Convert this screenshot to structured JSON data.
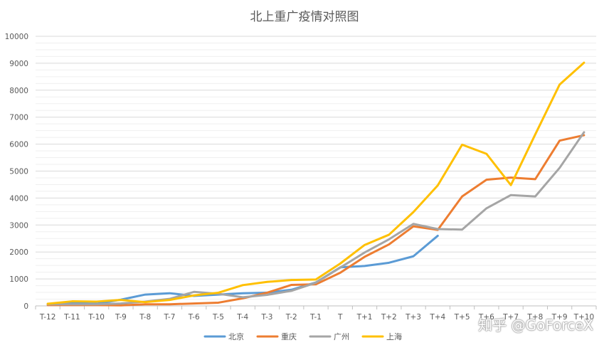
{
  "chart_data": {
    "type": "line",
    "title": "北上重广疫情对照图",
    "xlabel": "",
    "ylabel": "",
    "x": [
      "T-12",
      "T-11",
      "T-10",
      "T-9",
      "T-8",
      "T-7",
      "T-6",
      "T-5",
      "T-4",
      "T-3",
      "T-2",
      "T-1",
      "T",
      "T+1",
      "T+2",
      "T+3",
      "T+4",
      "T+5",
      "T+6",
      "T+7",
      "T+8",
      "T+9",
      "T+10"
    ],
    "ylim": [
      0,
      10000
    ],
    "yticks": [
      0,
      1000,
      2000,
      3000,
      4000,
      5000,
      6000,
      7000,
      8000,
      9000,
      10000
    ],
    "grid": true,
    "legend_position": "bottom",
    "series": [
      {
        "name": "北京",
        "color": "#5b9bd5",
        "values": [
          70,
          110,
          80,
          230,
          420,
          470,
          370,
          420,
          470,
          490,
          600,
          870,
          1430,
          1480,
          1600,
          1840,
          2600,
          null,
          null,
          null,
          null,
          null,
          null
        ]
      },
      {
        "name": "重庆",
        "color": "#ed7d31",
        "values": [
          30,
          30,
          30,
          20,
          60,
          60,
          90,
          120,
          280,
          490,
          780,
          800,
          1230,
          1820,
          2280,
          2950,
          2820,
          4060,
          4680,
          4760,
          4700,
          6130,
          6330
        ]
      },
      {
        "name": "广州",
        "color": "#a5a5a5",
        "values": [
          60,
          60,
          60,
          90,
          160,
          260,
          520,
          450,
          320,
          410,
          560,
          860,
          1420,
          1980,
          2470,
          3040,
          2850,
          2830,
          3620,
          4110,
          4060,
          5120,
          6440
        ]
      },
      {
        "name": "上海",
        "color": "#ffc000",
        "values": [
          80,
          170,
          160,
          220,
          140,
          220,
          390,
          490,
          770,
          890,
          960,
          980,
          1570,
          2260,
          2640,
          3480,
          4470,
          5980,
          5640,
          4480,
          6360,
          8210,
          9020
        ]
      }
    ]
  },
  "watermark": "知乎 @GoForceX"
}
